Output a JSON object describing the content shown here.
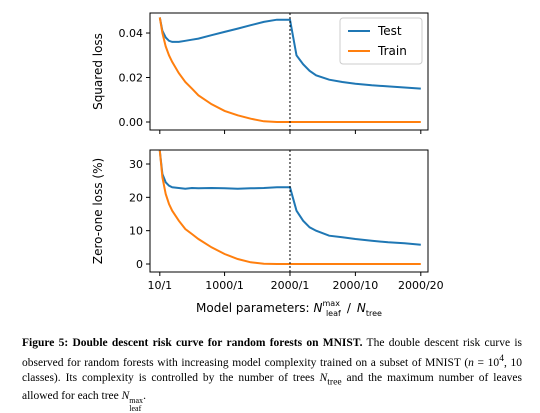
{
  "chart_data": [
    {
      "type": "line",
      "ylabel": "Squared loss",
      "legend": "upper right",
      "show_xticklabels": false,
      "vline": 2000,
      "xlim": [
        -140,
        4110
      ],
      "ylim": [
        -0.0036,
        0.049
      ],
      "xticks": [
        {
          "value": 10,
          "label": "10/1"
        },
        {
          "value": 1000,
          "label": "1000/1"
        },
        {
          "value": 2000,
          "label": "2000/1"
        },
        {
          "value": 3000,
          "label": "2000/10"
        },
        {
          "value": 4000,
          "label": "2000/20"
        }
      ],
      "yticks": [
        {
          "value": 0,
          "label": "0.00"
        },
        0.02,
        0.04
      ],
      "x": [
        10,
        50,
        100,
        150,
        200,
        300,
        400,
        500,
        600,
        800,
        1000,
        1200,
        1400,
        1600,
        1800,
        2000,
        2100,
        2200,
        2300,
        2400,
        2600,
        2800,
        3000,
        3250,
        3500,
        3750,
        4000
      ],
      "series": [
        {
          "name": "Test",
          "color": "#1f77b4",
          "values": [
            0.047,
            0.041,
            0.038,
            0.0365,
            0.036,
            0.036,
            0.0365,
            0.037,
            0.0375,
            0.039,
            0.0405,
            0.042,
            0.0435,
            0.045,
            0.046,
            0.046,
            0.03,
            0.026,
            0.023,
            0.021,
            0.019,
            0.018,
            0.0172,
            0.0165,
            0.016,
            0.0155,
            0.015
          ]
        },
        {
          "name": "Train",
          "color": "#ff7f0e",
          "values": [
            0.047,
            0.04,
            0.034,
            0.03,
            0.027,
            0.022,
            0.018,
            0.015,
            0.012,
            0.008,
            0.005,
            0.003,
            0.0015,
            0.0003,
            0,
            0,
            0,
            0,
            0,
            0,
            0,
            0,
            0,
            0,
            0,
            0,
            0
          ]
        }
      ]
    },
    {
      "type": "line",
      "ylabel": "Zero-one loss (%)",
      "show_xticklabels": true,
      "vline": 2000,
      "xlabel": {
        "prefix": "Model parameters:",
        "symbol": "N",
        "sup": "max",
        "sub": "leaf",
        "sep": "/",
        "symbol2": "N",
        "sub2": "tree"
      },
      "xlim": [
        -140,
        4110
      ],
      "ylim": [
        -2.4,
        34.2
      ],
      "xticks": [
        {
          "value": 10,
          "label": "10/1"
        },
        {
          "value": 1000,
          "label": "1000/1"
        },
        {
          "value": 2000,
          "label": "2000/1"
        },
        {
          "value": 3000,
          "label": "2000/10"
        },
        {
          "value": 4000,
          "label": "2000/20"
        }
      ],
      "yticks": [
        0,
        10,
        20,
        30
      ],
      "x": [
        10,
        50,
        100,
        150,
        200,
        300,
        400,
        500,
        600,
        800,
        1000,
        1200,
        1400,
        1600,
        1800,
        2000,
        2100,
        2200,
        2300,
        2400,
        2600,
        2800,
        3000,
        3250,
        3500,
        3750,
        4000
      ],
      "series": [
        {
          "name": "Test",
          "color": "#1f77b4",
          "values": [
            34,
            27,
            24.5,
            23.5,
            23,
            22.8,
            22.6,
            22.8,
            22.7,
            22.8,
            22.7,
            22.6,
            22.7,
            22.8,
            23,
            23,
            16,
            13,
            11,
            10,
            8.5,
            8,
            7.5,
            7,
            6.5,
            6.2,
            5.8
          ]
        },
        {
          "name": "Train",
          "color": "#ff7f0e",
          "values": [
            34,
            26,
            21,
            18,
            16,
            13,
            10.5,
            9,
            7.5,
            5,
            3,
            1.5,
            0.5,
            0.1,
            0,
            0,
            0,
            0,
            0,
            0,
            0,
            0,
            0,
            0,
            0,
            0,
            0
          ]
        }
      ]
    }
  ],
  "caption": {
    "label": "Figure 5:",
    "title": "Double descent risk curve for random forests on MNIST.",
    "runs": [
      {
        "kind": "plain",
        "text": "The double descent risk curve is observed for random forests with increasing model complexity trained on a subset of MNIST ("
      },
      {
        "kind": "italic",
        "text": "n"
      },
      {
        "kind": "plain",
        "text": " = 10"
      },
      {
        "kind": "sup",
        "text": "4"
      },
      {
        "kind": "plain",
        "text": ", 10 classes).  Its complexity is controlled by the number of trees "
      },
      {
        "kind": "italic",
        "text": "N"
      },
      {
        "kind": "sub",
        "text": "tree"
      },
      {
        "kind": "plain",
        "text": " and the maximum number of leaves allowed for each tree "
      },
      {
        "kind": "italic",
        "text": "N"
      },
      {
        "kind": "subsup",
        "text": "leaf",
        "sup": "max"
      },
      {
        "kind": "plain",
        "text": "."
      }
    ]
  }
}
